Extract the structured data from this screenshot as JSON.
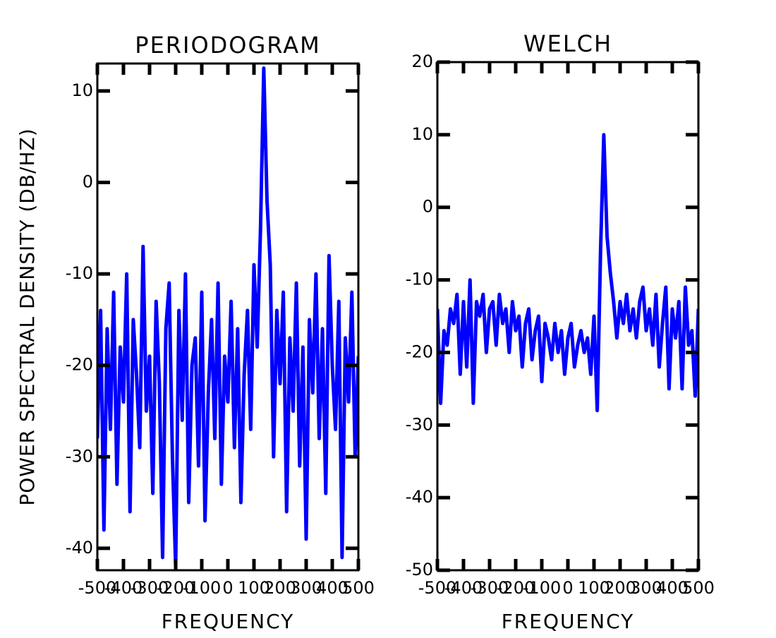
{
  "chart_data": [
    {
      "type": "line",
      "title": "PERIODOGRAM",
      "xlabel": "FREQUENCY",
      "ylabel": "POWER SPECTRAL DENSITY (DB/HZ)",
      "color": "#0000ff",
      "xlim": [
        -500,
        500
      ],
      "xticks": [
        -500,
        -400,
        -300,
        -200,
        -100,
        0,
        100,
        200,
        300,
        400,
        500
      ],
      "ylim": [
        -42.4,
        13
      ],
      "yticks": [
        -40,
        -30,
        -20,
        -10,
        0,
        10
      ],
      "x": [
        -500,
        -487.5,
        -475,
        -462.5,
        -450,
        -437.5,
        -425,
        -412.5,
        -400,
        -387.5,
        -375,
        -362.5,
        -350,
        -337.5,
        -325,
        -312.5,
        -300,
        -287.5,
        -275,
        -262.5,
        -250,
        -237.5,
        -225,
        -212.5,
        -200,
        -187.5,
        -175,
        -162.5,
        -150,
        -137.5,
        -125,
        -112.5,
        -100,
        -87.5,
        -75,
        -62.5,
        -50,
        -37.5,
        -25,
        -12.5,
        0,
        12.5,
        25,
        37.5,
        50,
        62.5,
        75,
        87.5,
        100,
        112.5,
        125,
        137.5,
        150,
        162.5,
        175,
        187.5,
        200,
        212.5,
        225,
        237.5,
        250,
        262.5,
        275,
        287.5,
        300,
        312.5,
        325,
        337.5,
        350,
        362.5,
        375,
        387.5,
        400,
        412.5,
        425,
        437.5,
        450,
        462.5,
        475,
        487.5,
        500
      ],
      "values": [
        -28,
        -14,
        -38,
        -16,
        -27,
        -12,
        -33,
        -18,
        -24,
        -10,
        -36,
        -15,
        -21,
        -29,
        -7,
        -25,
        -19,
        -34,
        -13,
        -22,
        -41,
        -16,
        -11,
        -30,
        -42,
        -14,
        -26,
        -10,
        -35,
        -20,
        -17,
        -31,
        -12,
        -37,
        -23,
        -15,
        -28,
        -11,
        -33,
        -19,
        -24,
        -13,
        -29,
        -16,
        -35,
        -21,
        -14,
        -27,
        -9,
        -18,
        -5,
        12.5,
        -2,
        -9,
        -30,
        -14,
        -22,
        -12,
        -36,
        -17,
        -25,
        -11,
        -31,
        -18,
        -39,
        -15,
        -23,
        -10,
        -28,
        -16,
        -34,
        -8,
        -20,
        -27,
        -13,
        -41,
        -17,
        -24,
        -12,
        -30,
        -19
      ]
    },
    {
      "type": "line",
      "title": "WELCH",
      "xlabel": "FREQUENCY",
      "color": "#0000ff",
      "xlim": [
        -500,
        500
      ],
      "xticks": [
        -500,
        -400,
        -300,
        -200,
        -100,
        0,
        100,
        200,
        300,
        400,
        500
      ],
      "ylim": [
        -50,
        20
      ],
      "yticks": [
        -50,
        -40,
        -30,
        -20,
        -10,
        0,
        10,
        20
      ],
      "x": [
        -500,
        -487.5,
        -475,
        -462.5,
        -450,
        -437.5,
        -425,
        -412.5,
        -400,
        -387.5,
        -375,
        -362.5,
        -350,
        -337.5,
        -325,
        -312.5,
        -300,
        -287.5,
        -275,
        -262.5,
        -250,
        -237.5,
        -225,
        -212.5,
        -200,
        -187.5,
        -175,
        -162.5,
        -150,
        -137.5,
        -125,
        -112.5,
        -100,
        -87.5,
        -75,
        -62.5,
        -50,
        -37.5,
        -25,
        -12.5,
        0,
        12.5,
        25,
        37.5,
        50,
        62.5,
        75,
        87.5,
        100,
        112.5,
        125,
        137.5,
        150,
        162.5,
        175,
        187.5,
        200,
        212.5,
        225,
        237.5,
        250,
        262.5,
        275,
        287.5,
        300,
        312.5,
        325,
        337.5,
        350,
        362.5,
        375,
        387.5,
        400,
        412.5,
        425,
        437.5,
        450,
        462.5,
        475,
        487.5,
        500
      ],
      "values": [
        -14,
        -27,
        -17,
        -19,
        -14,
        -16,
        -12,
        -23,
        -13,
        -22,
        -10,
        -27,
        -13,
        -15,
        -12,
        -20,
        -14,
        -13,
        -19,
        -12,
        -16,
        -14,
        -20,
        -13,
        -17,
        -15,
        -22,
        -16,
        -14,
        -21,
        -17,
        -15,
        -24,
        -16,
        -18,
        -21,
        -16,
        -20,
        -17,
        -23,
        -18,
        -16,
        -22,
        -19,
        -17,
        -20,
        -18,
        -23,
        -15,
        -28,
        -6,
        10,
        -4,
        -9,
        -13,
        -18,
        -13,
        -16,
        -12,
        -17,
        -14,
        -18,
        -13,
        -11,
        -17,
        -14,
        -19,
        -12,
        -22,
        -16,
        -11,
        -25,
        -14,
        -18,
        -13,
        -25,
        -11,
        -19,
        -17,
        -26,
        -14
      ]
    }
  ]
}
